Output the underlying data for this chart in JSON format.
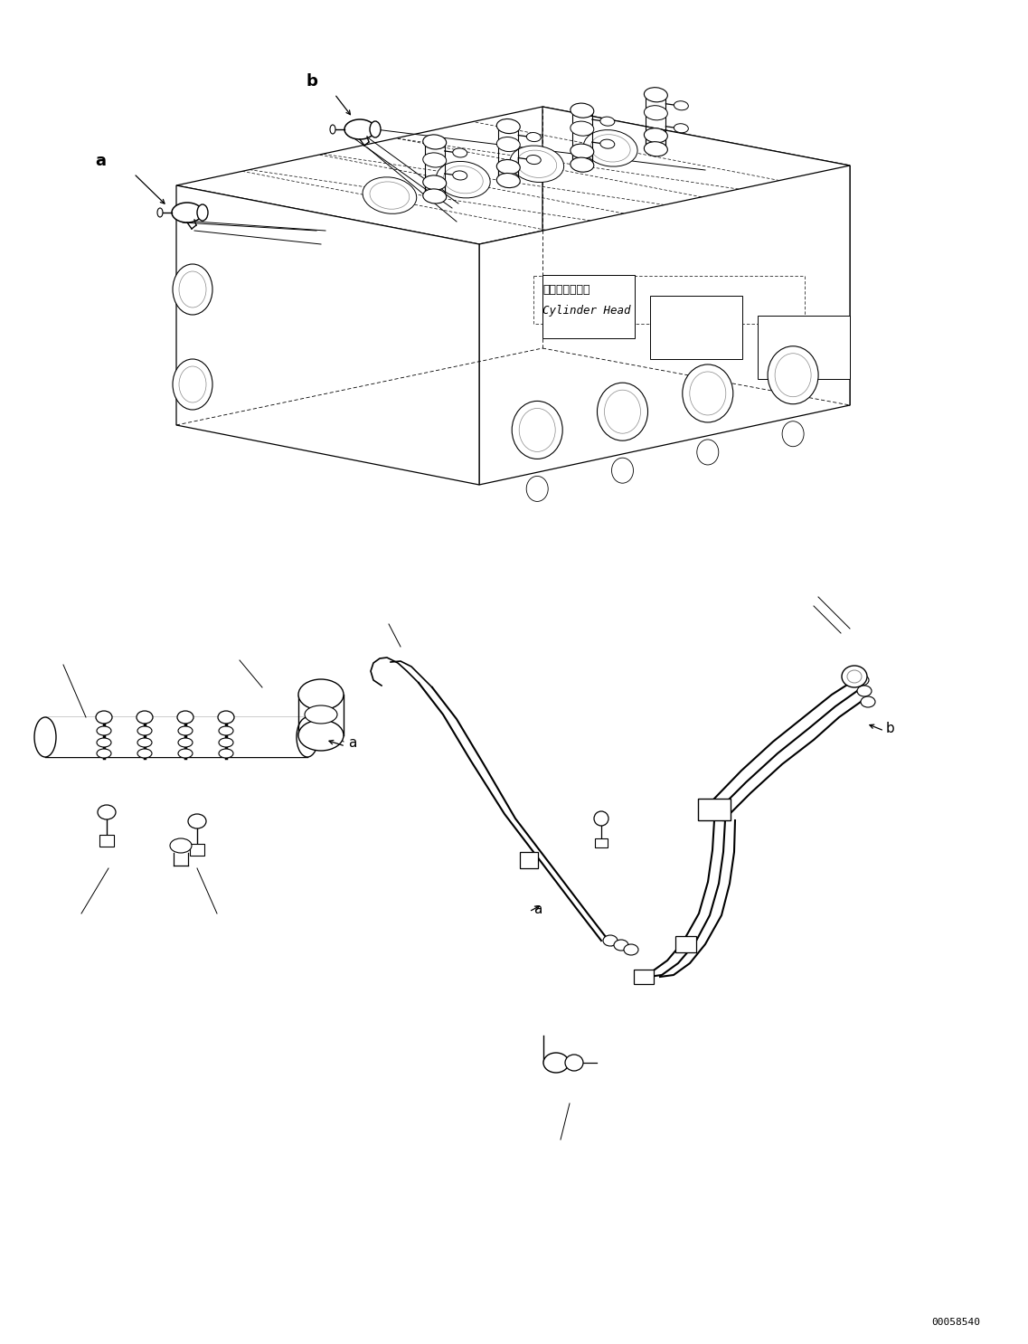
{
  "bg_color": "#ffffff",
  "lc": "#000000",
  "fig_width": 11.37,
  "fig_height": 14.86,
  "dpi": 100,
  "part_number": "00058540",
  "cyl_head_jp": "シリンダヘッド",
  "cyl_head_en": "Cylinder Head",
  "label_a": "a",
  "label_b": "b"
}
